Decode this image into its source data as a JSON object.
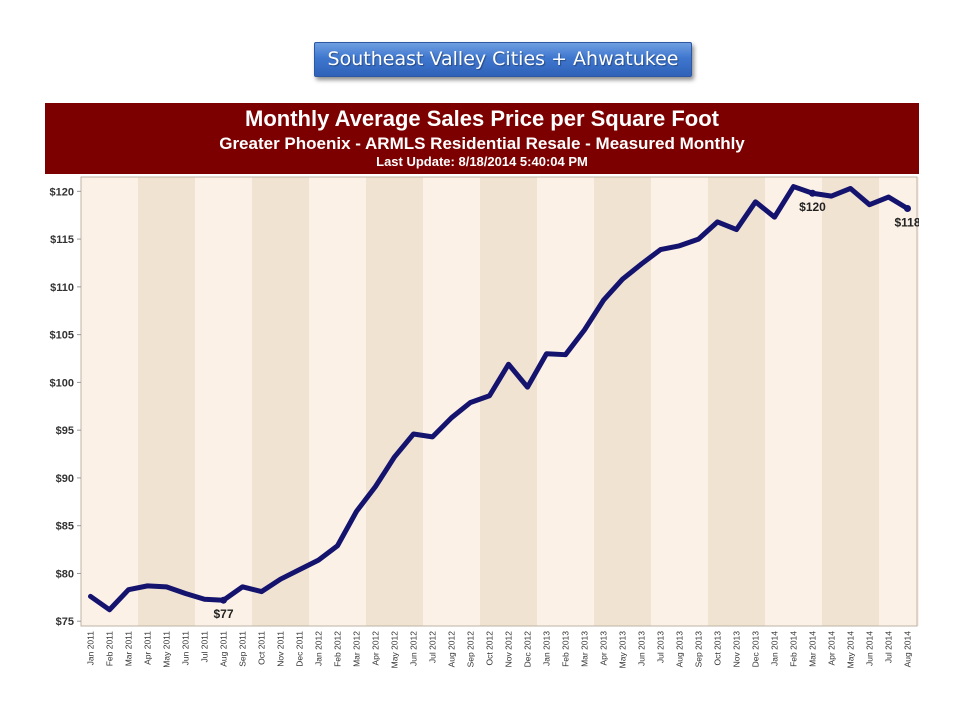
{
  "banner": {
    "label": "Southeast Valley Cities + Ahwatukee"
  },
  "chart_title": {
    "line1": "Monthly Average Sales Price per Square Foot",
    "line2": "Greater Phoenix - ARMLS Residential Resale - Measured Monthly",
    "line3": "Last Update: 8/18/2014 5:40:04 PM"
  },
  "colors": {
    "title_band": "#7c0000",
    "line": "#14136e",
    "band_light": "#fbf1e6",
    "band_dark": "#f1e3d1"
  },
  "chart_data": {
    "type": "line",
    "title": "Monthly Average Sales Price per Square Foot",
    "subtitle": "Greater Phoenix - ARMLS Residential Resale - Measured Monthly",
    "xlabel": "",
    "ylabel": "",
    "ylim": [
      74.5,
      121.5
    ],
    "y_ticks": [
      "$75",
      "$80",
      "$85",
      "$90",
      "$95",
      "$100",
      "$105",
      "$110",
      "$115",
      "$120"
    ],
    "y_tick_values": [
      75,
      80,
      85,
      90,
      95,
      100,
      105,
      110,
      115,
      120
    ],
    "grid": false,
    "categories": [
      "Jan 2011",
      "Feb 2011",
      "Mar 2011",
      "Apr 2011",
      "May 2011",
      "Jun 2011",
      "Jul 2011",
      "Aug 2011",
      "Sep 2011",
      "Oct 2011",
      "Nov 2011",
      "Dec 2011",
      "Jan 2012",
      "Feb 2012",
      "Mar 2012",
      "Apr 2012",
      "May 2012",
      "Jun 2012",
      "Jul 2012",
      "Aug 2012",
      "Sep 2012",
      "Oct 2012",
      "Nov 2012",
      "Dec 2012",
      "Jan 2013",
      "Feb 2013",
      "Mar 2013",
      "Apr 2013",
      "May 2013",
      "Jun 2013",
      "Jul 2013",
      "Aug 2013",
      "Sep 2013",
      "Oct 2013",
      "Nov 2013",
      "Dec 2013",
      "Jan 2014",
      "Feb 2014",
      "Mar 2014",
      "Apr 2014",
      "May 2014",
      "Jun 2014",
      "Jul 2014",
      "Aug 2014"
    ],
    "series": [
      {
        "values": [
          77.6,
          76.2,
          78.3,
          78.7,
          78.6,
          77.9,
          77.3,
          77.2,
          78.6,
          78.1,
          79.4,
          80.4,
          81.4,
          82.9,
          86.5,
          89.1,
          92.2,
          94.6,
          94.3,
          96.3,
          97.9,
          98.6,
          101.9,
          99.5,
          103.0,
          102.9,
          105.5,
          108.6,
          110.8,
          112.4,
          113.9,
          114.3,
          115.0,
          116.8,
          116.0,
          118.9,
          117.3,
          120.5,
          119.8,
          119.5,
          120.3,
          118.6,
          119.4,
          118.2
        ]
      }
    ],
    "annotations": [
      {
        "category": "Aug 2011",
        "value": 77.2,
        "label": "$77"
      },
      {
        "category": "Mar 2014",
        "value": 119.8,
        "label": "$120"
      },
      {
        "category": "Aug 2014",
        "value": 118.2,
        "label": "$118"
      }
    ]
  }
}
